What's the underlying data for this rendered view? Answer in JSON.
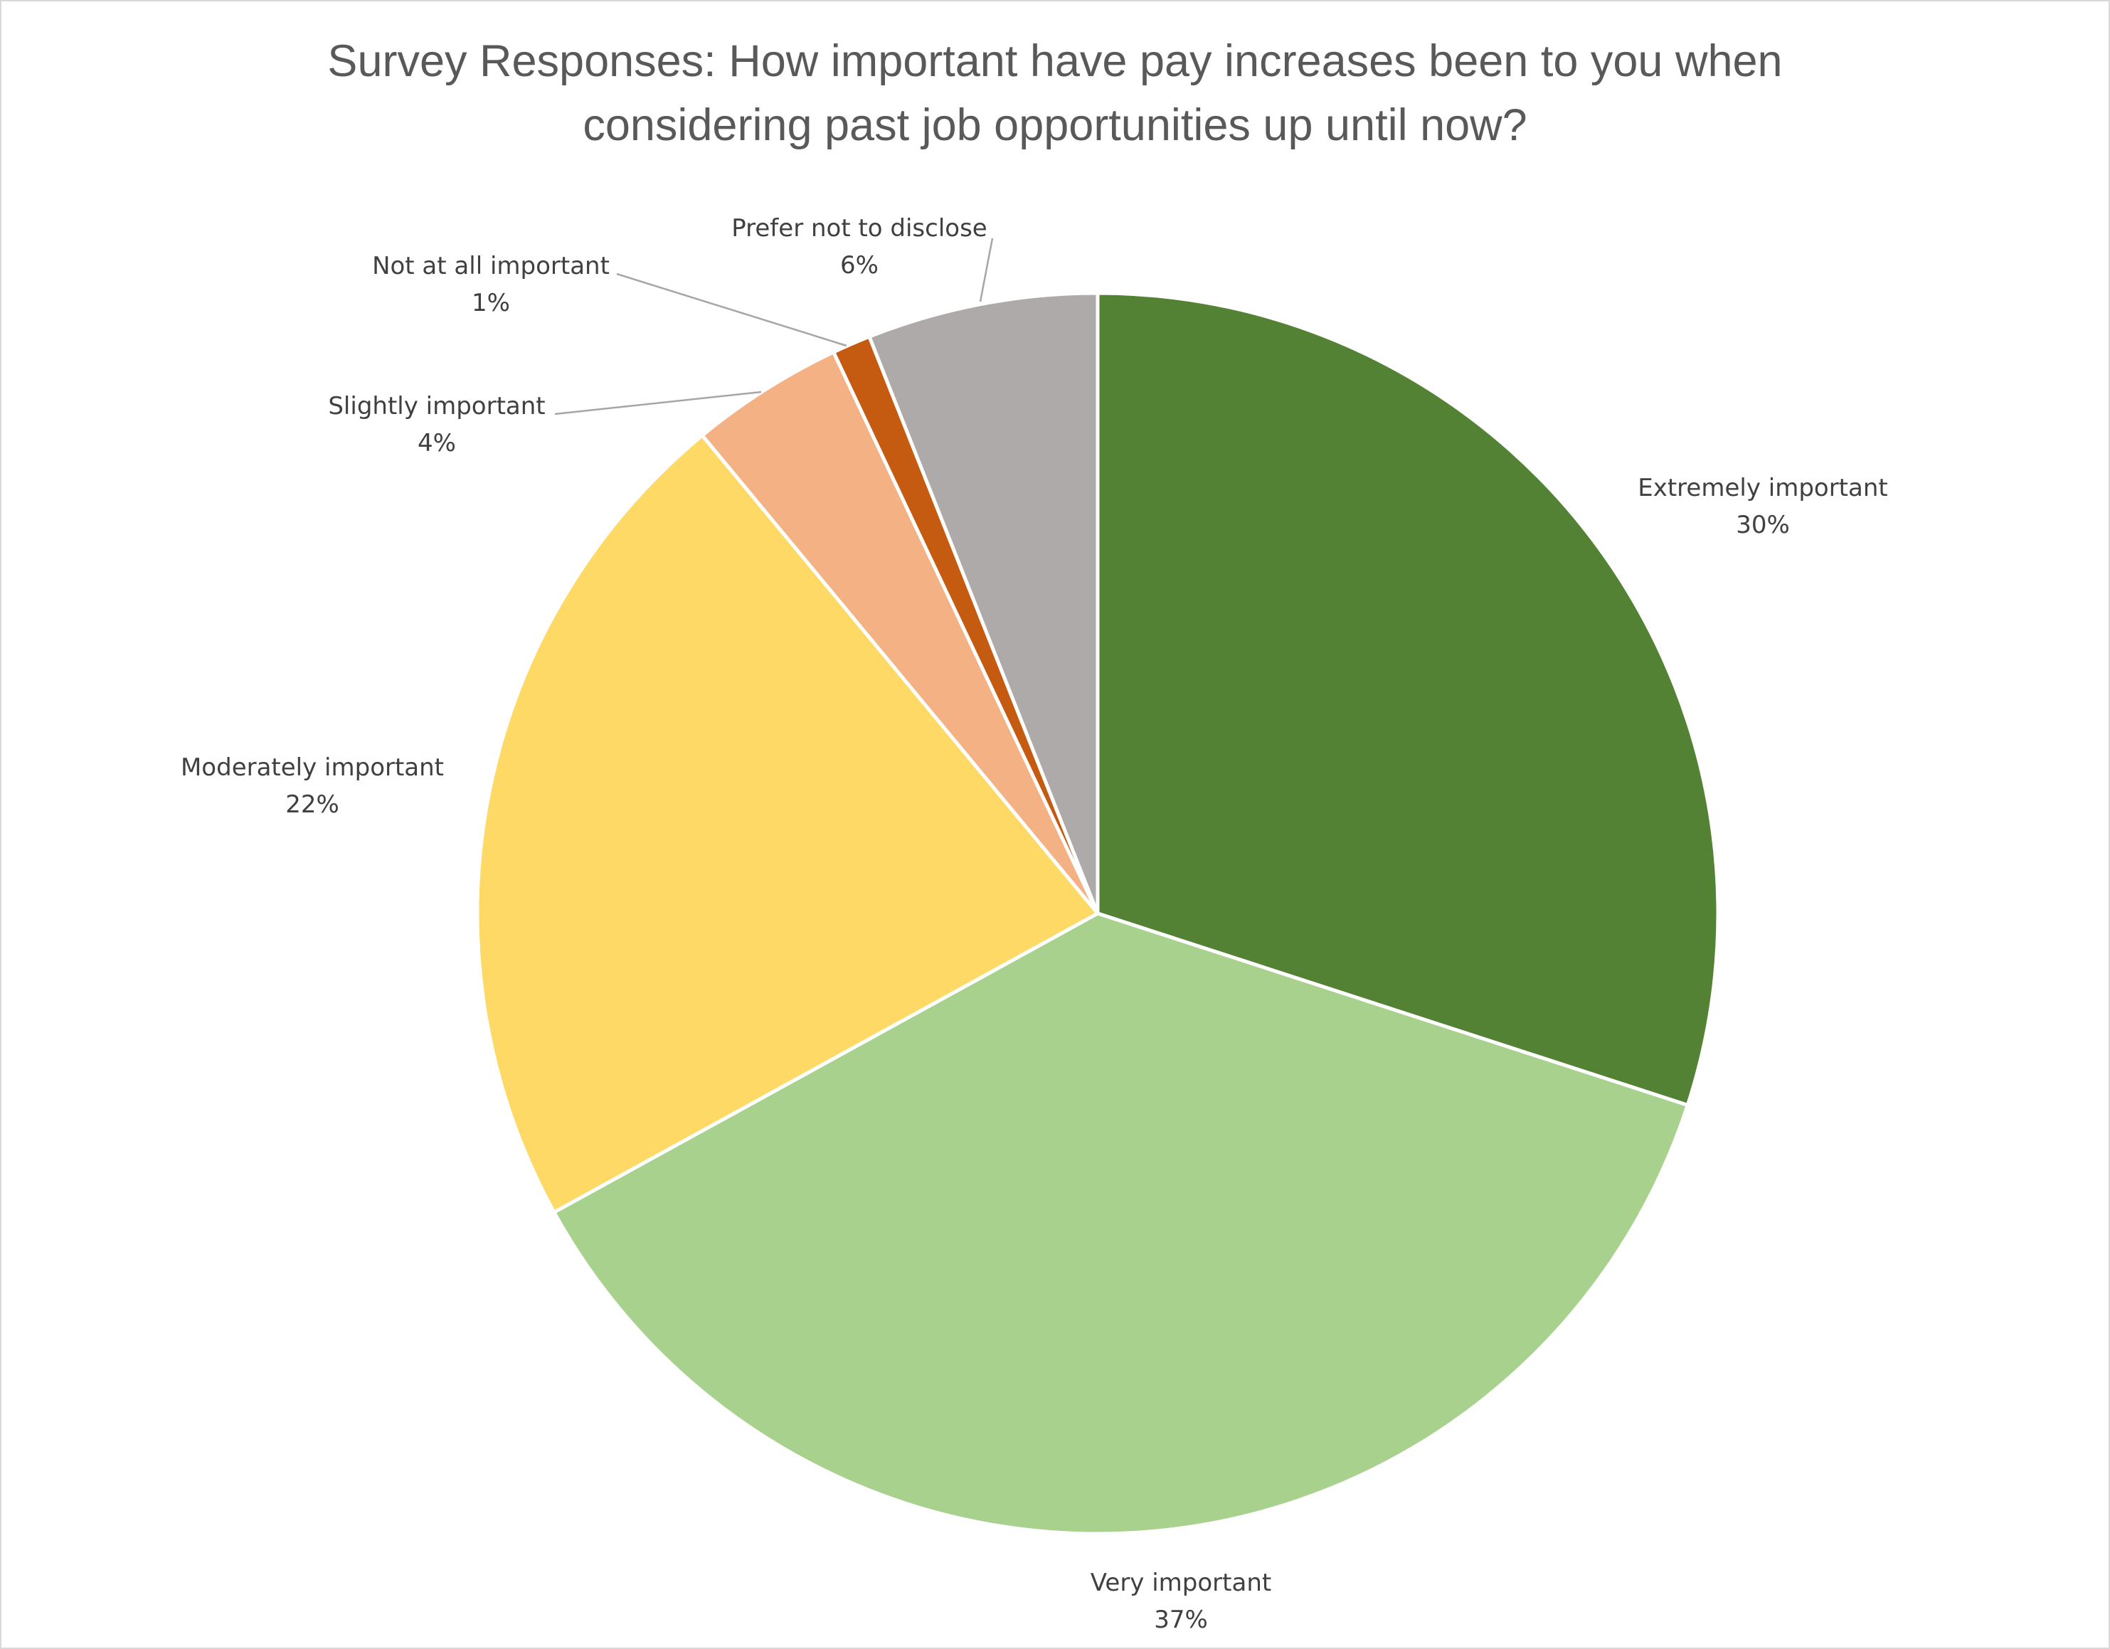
{
  "chart_data": {
    "type": "pie",
    "title_lines": [
      "Survey Responses: How important have pay increases been to you when",
      "considering past job opportunities up until now?"
    ],
    "start_angle_deg": 0,
    "direction": "clockwise",
    "slices": [
      {
        "label": "Extremely important",
        "value": 30,
        "display": "30%",
        "color": "#548235"
      },
      {
        "label": "Very important",
        "value": 37,
        "display": "37%",
        "color": "#A9D18E"
      },
      {
        "label": "Moderately important",
        "value": 22,
        "display": "22%",
        "color": "#FFD966"
      },
      {
        "label": "Slightly important",
        "value": 4,
        "display": "4%",
        "color": "#F4B183"
      },
      {
        "label": "Not at all important",
        "value": 1,
        "display": "1%",
        "color": "#C55A11"
      },
      {
        "label": "Prefer not to disclose",
        "value": 6,
        "display": "6%",
        "color": "#AEAAAA"
      }
    ],
    "data_labels": "category name and percentage",
    "legend": "none"
  }
}
